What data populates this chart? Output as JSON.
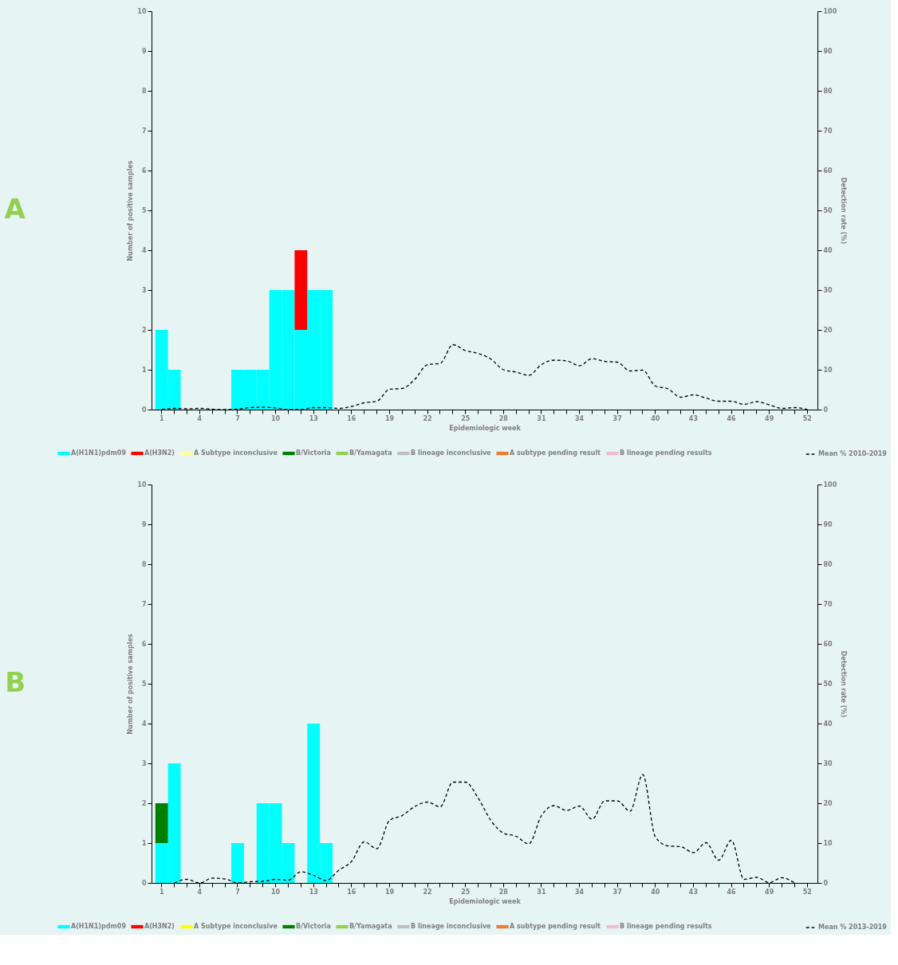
{
  "chart_data": [
    {
      "type": "bar",
      "title": "A",
      "xlabel": "Epidemiologic week",
      "ylabel": "Number of positive samples",
      "y2label": "Detection rate (%)",
      "stacked": true,
      "legend": "bottom",
      "line_style": "dashed",
      "categories": [
        "1",
        null,
        null,
        "4",
        null,
        null,
        "7",
        null,
        null,
        "10",
        null,
        null,
        "13",
        null,
        null,
        "16",
        null,
        null,
        "19",
        null,
        null,
        "22",
        null,
        null,
        "25",
        null,
        null,
        "28",
        null,
        null,
        "31",
        null,
        null,
        "34",
        null,
        null,
        "37",
        null,
        null,
        "40",
        null,
        null,
        "43",
        null,
        null,
        "46",
        null,
        null,
        "49",
        null,
        null,
        "52"
      ],
      "ylim": [
        0,
        10
      ],
      "yticks": [
        0,
        1,
        2,
        3,
        4,
        5,
        6,
        7,
        8,
        9,
        10
      ],
      "y2lim": [
        0,
        100
      ],
      "y2ticks": [
        0,
        10,
        20,
        30,
        40,
        50,
        60,
        70,
        80,
        90,
        100
      ],
      "series": [
        {
          "name": "A(H1N1)pdm09",
          "type": "bar",
          "color": "#00ffff",
          "values": [
            2,
            1,
            0,
            0,
            0,
            0,
            1,
            1,
            1,
            3,
            3,
            2,
            3,
            3,
            0,
            0,
            0,
            0,
            0,
            0,
            0,
            0,
            0,
            0,
            0,
            0,
            0,
            0,
            0,
            0,
            0,
            0,
            0,
            0,
            0,
            0,
            0,
            0,
            0,
            0,
            0,
            0,
            0,
            0,
            0,
            0,
            0,
            0,
            0,
            0,
            0,
            0
          ]
        },
        {
          "name": "A(H3N2)",
          "type": "bar",
          "color": "#ff0000",
          "values": [
            0,
            0,
            0,
            0,
            0,
            0,
            0,
            0,
            0,
            0,
            0,
            2,
            0,
            0,
            0,
            0,
            0,
            0,
            0,
            0,
            0,
            0,
            0,
            0,
            0,
            0,
            0,
            0,
            0,
            0,
            0,
            0,
            0,
            0,
            0,
            0,
            0,
            0,
            0,
            0,
            0,
            0,
            0,
            0,
            0,
            0,
            0,
            0,
            0,
            0,
            0,
            0
          ]
        },
        {
          "name": "A Subtype inconclusive",
          "type": "bar",
          "color": "#ffff99",
          "values": [
            0,
            0,
            0,
            0,
            0,
            0,
            0,
            0,
            0,
            0,
            0,
            0,
            0,
            0,
            0,
            0,
            0,
            0,
            0,
            0,
            0,
            0,
            0,
            0,
            0,
            0,
            0,
            0,
            0,
            0,
            0,
            0,
            0,
            0,
            0,
            0,
            0,
            0,
            0,
            0,
            0,
            0,
            0,
            0,
            0,
            0,
            0,
            0,
            0,
            0,
            0,
            0
          ]
        },
        {
          "name": "B/Victoria",
          "type": "bar",
          "color": "#008000",
          "values": [
            0,
            0,
            0,
            0,
            0,
            0,
            0,
            0,
            0,
            0,
            0,
            0,
            0,
            0,
            0,
            0,
            0,
            0,
            0,
            0,
            0,
            0,
            0,
            0,
            0,
            0,
            0,
            0,
            0,
            0,
            0,
            0,
            0,
            0,
            0,
            0,
            0,
            0,
            0,
            0,
            0,
            0,
            0,
            0,
            0,
            0,
            0,
            0,
            0,
            0,
            0,
            0
          ]
        },
        {
          "name": "B/Yamagata",
          "type": "bar",
          "color": "#92d050",
          "values": [
            0,
            0,
            0,
            0,
            0,
            0,
            0,
            0,
            0,
            0,
            0,
            0,
            0,
            0,
            0,
            0,
            0,
            0,
            0,
            0,
            0,
            0,
            0,
            0,
            0,
            0,
            0,
            0,
            0,
            0,
            0,
            0,
            0,
            0,
            0,
            0,
            0,
            0,
            0,
            0,
            0,
            0,
            0,
            0,
            0,
            0,
            0,
            0,
            0,
            0,
            0,
            0
          ]
        },
        {
          "name": "B lineage inconclusive",
          "type": "bar",
          "color": "#bfbfbf",
          "values": [
            0,
            0,
            0,
            0,
            0,
            0,
            0,
            0,
            0,
            0,
            0,
            0,
            0,
            0,
            0,
            0,
            0,
            0,
            0,
            0,
            0,
            0,
            0,
            0,
            0,
            0,
            0,
            0,
            0,
            0,
            0,
            0,
            0,
            0,
            0,
            0,
            0,
            0,
            0,
            0,
            0,
            0,
            0,
            0,
            0,
            0,
            0,
            0,
            0,
            0,
            0,
            0
          ]
        },
        {
          "name": "A subtype pending result",
          "type": "bar",
          "color": "#ed7d31",
          "values": [
            0,
            0,
            0,
            0,
            0,
            0,
            0,
            0,
            0,
            0,
            0,
            0,
            0,
            0,
            0,
            0,
            0,
            0,
            0,
            0,
            0,
            0,
            0,
            0,
            0,
            0,
            0,
            0,
            0,
            0,
            0,
            0,
            0,
            0,
            0,
            0,
            0,
            0,
            0,
            0,
            0,
            0,
            0,
            0,
            0,
            0,
            0,
            0,
            0,
            0,
            0,
            0
          ]
        },
        {
          "name": "B lineage pending results",
          "type": "bar",
          "color": "#f4b8d8",
          "values": [
            0,
            0,
            0,
            0,
            0,
            0,
            0,
            0,
            0,
            0,
            0,
            0,
            0,
            0,
            0,
            0,
            0,
            0,
            0,
            0,
            0,
            0,
            0,
            0,
            0,
            0,
            0,
            0,
            0,
            0,
            0,
            0,
            0,
            0,
            0,
            0,
            0,
            0,
            0,
            0,
            0,
            0,
            0,
            0,
            0,
            0,
            0,
            0,
            0,
            0,
            0,
            0
          ]
        },
        {
          "name": "Mean % 2010-2019",
          "type": "line",
          "axis": "y2",
          "color": "#000000",
          "values": [
            0,
            0.3,
            0.2,
            0.3,
            0.1,
            0,
            0.1,
            0.5,
            0.6,
            0.4,
            0,
            0,
            0.5,
            0.5,
            0.3,
            0.8,
            1.7,
            2.1,
            5.1,
            5.3,
            7.6,
            11.3,
            11.6,
            16.3,
            14.8,
            14.1,
            12.7,
            10,
            9.4,
            8.6,
            11.3,
            12.4,
            12.2,
            11,
            12.8,
            12.1,
            11.9,
            9.7,
            9.9,
            5.9,
            5.2,
            3.1,
            3.7,
            2.9,
            2.1,
            2.1,
            1.3,
            2,
            1.2,
            0.3,
            0.5,
            0
          ]
        }
      ]
    },
    {
      "type": "bar",
      "title": "B",
      "xlabel": "Epidemiologic week",
      "ylabel": "Number of positive samples",
      "y2label": "Detection rate (%)",
      "stacked": true,
      "legend": "bottom",
      "line_style": "dashed",
      "categories": [
        "1",
        null,
        null,
        "4",
        null,
        null,
        "7",
        null,
        null,
        "10",
        null,
        null,
        "13",
        null,
        null,
        "16",
        null,
        null,
        "19",
        null,
        null,
        "22",
        null,
        null,
        "25",
        null,
        null,
        "28",
        null,
        null,
        "31",
        null,
        null,
        "34",
        null,
        null,
        "37",
        null,
        null,
        "40",
        null,
        null,
        "43",
        null,
        null,
        "46",
        null,
        null,
        "49",
        null,
        null,
        "52"
      ],
      "ylim": [
        0,
        10
      ],
      "yticks": [
        0,
        1,
        2,
        3,
        4,
        5,
        6,
        7,
        8,
        9,
        10
      ],
      "y2lim": [
        0,
        100
      ],
      "y2ticks": [
        0,
        10,
        20,
        30,
        40,
        50,
        60,
        70,
        80,
        90,
        100
      ],
      "series": [
        {
          "name": "A(H1N1)pdm09",
          "type": "bar",
          "color": "#00ffff",
          "values": [
            1,
            3,
            0,
            0,
            0,
            0,
            1,
            0,
            2,
            2,
            1,
            0,
            4,
            1,
            0,
            0,
            0,
            0,
            0,
            0,
            0,
            0,
            0,
            0,
            0,
            0,
            0,
            0,
            0,
            0,
            0,
            0,
            0,
            0,
            0,
            0,
            0,
            0,
            0,
            0,
            0,
            0,
            0,
            0,
            0,
            0,
            0,
            0,
            0,
            0,
            0,
            0
          ]
        },
        {
          "name": "A(H3N2)",
          "type": "bar",
          "color": "#ff0000",
          "values": [
            0,
            0,
            0,
            0,
            0,
            0,
            0,
            0,
            0,
            0,
            0,
            0,
            0,
            0,
            0,
            0,
            0,
            0,
            0,
            0,
            0,
            0,
            0,
            0,
            0,
            0,
            0,
            0,
            0,
            0,
            0,
            0,
            0,
            0,
            0,
            0,
            0,
            0,
            0,
            0,
            0,
            0,
            0,
            0,
            0,
            0,
            0,
            0,
            0,
            0,
            0,
            0
          ]
        },
        {
          "name": "A Subtype inconclusive",
          "type": "bar",
          "color": "#ffff00",
          "values": [
            0,
            0,
            0,
            0,
            0,
            0,
            0,
            0,
            0,
            0,
            0,
            0,
            0,
            0,
            0,
            0,
            0,
            0,
            0,
            0,
            0,
            0,
            0,
            0,
            0,
            0,
            0,
            0,
            0,
            0,
            0,
            0,
            0,
            0,
            0,
            0,
            0,
            0,
            0,
            0,
            0,
            0,
            0,
            0,
            0,
            0,
            0,
            0,
            0,
            0,
            0,
            0
          ]
        },
        {
          "name": "B/Victoria",
          "type": "bar",
          "color": "#008000",
          "values": [
            1,
            0,
            0,
            0,
            0,
            0,
            0,
            0,
            0,
            0,
            0,
            0,
            0,
            0,
            0,
            0,
            0,
            0,
            0,
            0,
            0,
            0,
            0,
            0,
            0,
            0,
            0,
            0,
            0,
            0,
            0,
            0,
            0,
            0,
            0,
            0,
            0,
            0,
            0,
            0,
            0,
            0,
            0,
            0,
            0,
            0,
            0,
            0,
            0,
            0,
            0,
            0
          ]
        },
        {
          "name": "B/Yamagata",
          "type": "bar",
          "color": "#92d050",
          "values": [
            0,
            0,
            0,
            0,
            0,
            0,
            0,
            0,
            0,
            0,
            0,
            0,
            0,
            0,
            0,
            0,
            0,
            0,
            0,
            0,
            0,
            0,
            0,
            0,
            0,
            0,
            0,
            0,
            0,
            0,
            0,
            0,
            0,
            0,
            0,
            0,
            0,
            0,
            0,
            0,
            0,
            0,
            0,
            0,
            0,
            0,
            0,
            0,
            0,
            0,
            0,
            0
          ]
        },
        {
          "name": "B lineage inconclusive",
          "type": "bar",
          "color": "#bfbfbf",
          "values": [
            0,
            0,
            0,
            0,
            0,
            0,
            0,
            0,
            0,
            0,
            0,
            0,
            0,
            0,
            0,
            0,
            0,
            0,
            0,
            0,
            0,
            0,
            0,
            0,
            0,
            0,
            0,
            0,
            0,
            0,
            0,
            0,
            0,
            0,
            0,
            0,
            0,
            0,
            0,
            0,
            0,
            0,
            0,
            0,
            0,
            0,
            0,
            0,
            0,
            0,
            0,
            0
          ]
        },
        {
          "name": "A subtype pending result",
          "type": "bar",
          "color": "#ed7d31",
          "values": [
            0,
            0,
            0,
            0,
            0,
            0,
            0,
            0,
            0,
            0,
            0,
            0,
            0,
            0,
            0,
            0,
            0,
            0,
            0,
            0,
            0,
            0,
            0,
            0,
            0,
            0,
            0,
            0,
            0,
            0,
            0,
            0,
            0,
            0,
            0,
            0,
            0,
            0,
            0,
            0,
            0,
            0,
            0,
            0,
            0,
            0,
            0,
            0,
            0,
            0,
            0,
            0
          ]
        },
        {
          "name": "B lineage pending results",
          "type": "bar",
          "color": "#f4b8d8",
          "values": [
            0,
            0,
            0,
            0,
            0,
            0,
            0,
            0,
            0,
            0,
            0,
            0,
            0,
            0,
            0,
            0,
            0,
            0,
            0,
            0,
            0,
            0,
            0,
            0,
            0,
            0,
            0,
            0,
            0,
            0,
            0,
            0,
            0,
            0,
            0,
            0,
            0,
            0,
            0,
            0,
            0,
            0,
            0,
            0,
            0,
            0,
            0,
            0,
            0,
            0,
            0,
            0
          ]
        },
        {
          "name": "Mean % 2013-2019",
          "type": "line",
          "axis": "y2",
          "color": "#000000",
          "values": [
            null,
            0,
            0.9,
            0,
            1.2,
            1,
            0,
            0.3,
            0.4,
            0.9,
            0.7,
            2.8,
            1.9,
            0.6,
            3.2,
            5.4,
            10.3,
            8.6,
            15.7,
            16.9,
            19.2,
            20.3,
            19.1,
            25.3,
            25.3,
            21.3,
            15.7,
            12.5,
            11.7,
            9.8,
            16.9,
            19.4,
            18.2,
            19.3,
            16,
            20.6,
            20.6,
            18,
            27.2,
            11.5,
            9.3,
            9.1,
            7.6,
            10.1,
            5.7,
            10.7,
            0.9,
            1.4,
            0.1,
            1.3,
            0,
            null
          ]
        }
      ]
    }
  ]
}
